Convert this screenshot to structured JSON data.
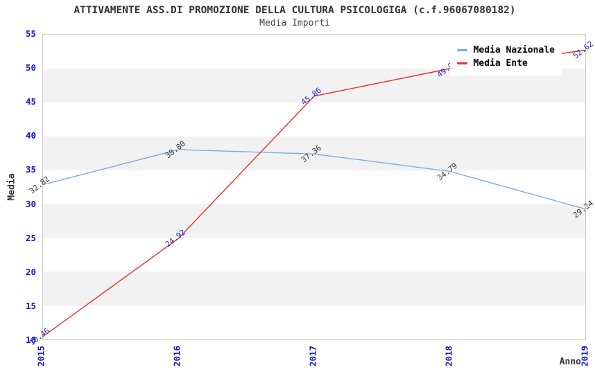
{
  "header": {
    "title": "ATTIVAMENTE ASS.DI PROMOZIONE DELLA CULTURA PSICOLOGIGA (c.f.96067080182)",
    "subtitle": "Media Importi"
  },
  "axes": {
    "y_title": "Media",
    "x_title": "Anno"
  },
  "colors": {
    "tick_label": "#1414cc",
    "band_gray": "#f2f2f2",
    "plot_border": "#cccccc",
    "nazionale_line": "#79aee3",
    "ente_line": "#ef2b2b"
  },
  "chart_data": {
    "type": "line",
    "title": "ATTIVAMENTE ASS.DI PROMOZIONE DELLA CULTURA PSICOLOGIGA (c.f.96067080182)",
    "subtitle": "Media Importi",
    "xlabel": "Anno",
    "ylabel": "Media",
    "x": [
      2015,
      2016,
      2017,
      2018,
      2019
    ],
    "series": [
      {
        "name": "Media Nazionale",
        "values": [
          32.82,
          38.0,
          37.36,
          34.79,
          29.24
        ],
        "color": "#79aee3",
        "label_color": "#333333"
      },
      {
        "name": "Media Ente",
        "values": [
          10.46,
          24.92,
          45.86,
          49.91,
          52.62
        ],
        "color": "#ef2b2b",
        "label_color": "#2727c4"
      }
    ],
    "ylim": [
      10,
      55
    ],
    "ytick_step": 5,
    "grid": "alternating-horizontal-bands",
    "legend_position": "top-right"
  }
}
